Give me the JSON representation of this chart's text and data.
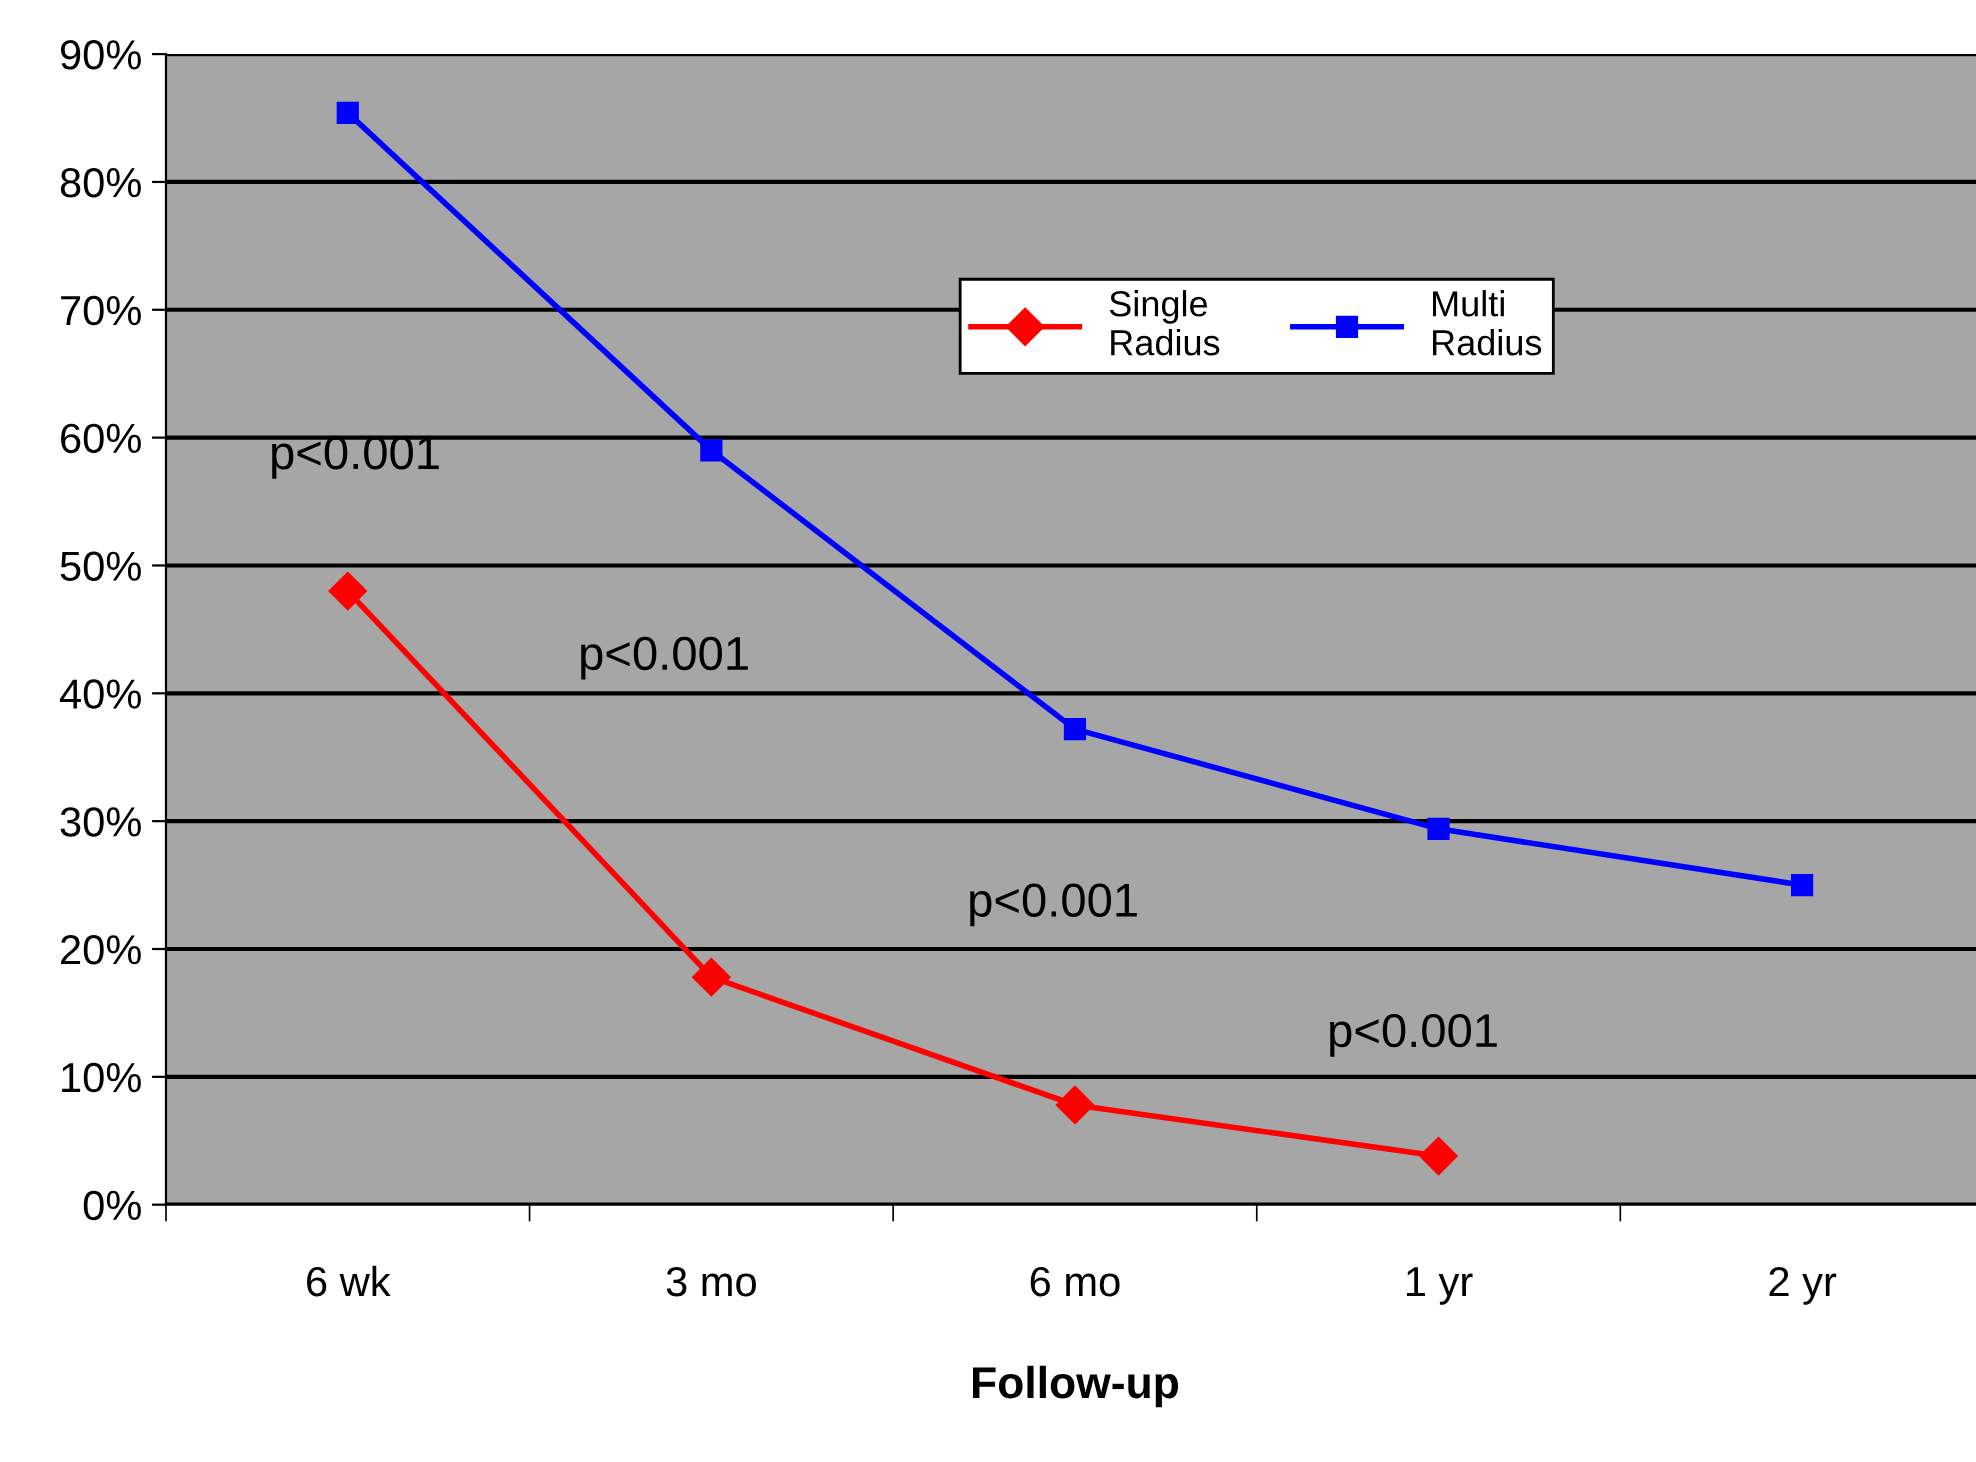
{
  "chart_data": {
    "type": "line",
    "xlabel": "Follow-up",
    "categories": [
      "6 wk",
      "3 mo",
      "6 mo",
      "1 yr",
      "2 yr"
    ],
    "series": [
      {
        "name": "Single\nRadius",
        "color": "#ff0000",
        "marker": "diamond",
        "values": [
          48,
          17.8,
          7.8,
          3.8,
          null
        ]
      },
      {
        "name": "Multi\nRadius",
        "color": "#0000ff",
        "marker": "square",
        "values": [
          85.4,
          59,
          37.2,
          29.4,
          25
        ]
      }
    ],
    "ylim": [
      0,
      90
    ],
    "yticks": [
      {
        "value": 0,
        "label": "0%"
      },
      {
        "value": 10,
        "label": "10%"
      },
      {
        "value": 20,
        "label": "20%"
      },
      {
        "value": 30,
        "label": "30%"
      },
      {
        "value": 40,
        "label": "40%"
      },
      {
        "value": 50,
        "label": "50%"
      },
      {
        "value": 60,
        "label": "60%"
      },
      {
        "value": 70,
        "label": "70%"
      },
      {
        "value": 80,
        "label": "80%"
      },
      {
        "value": 90,
        "label": "90%"
      }
    ],
    "grid": "y",
    "legend": "top",
    "line_style": "solid",
    "annotations": [
      "p<0.001",
      "p<0.001",
      "p<0.001",
      "p<0.001"
    ]
  }
}
